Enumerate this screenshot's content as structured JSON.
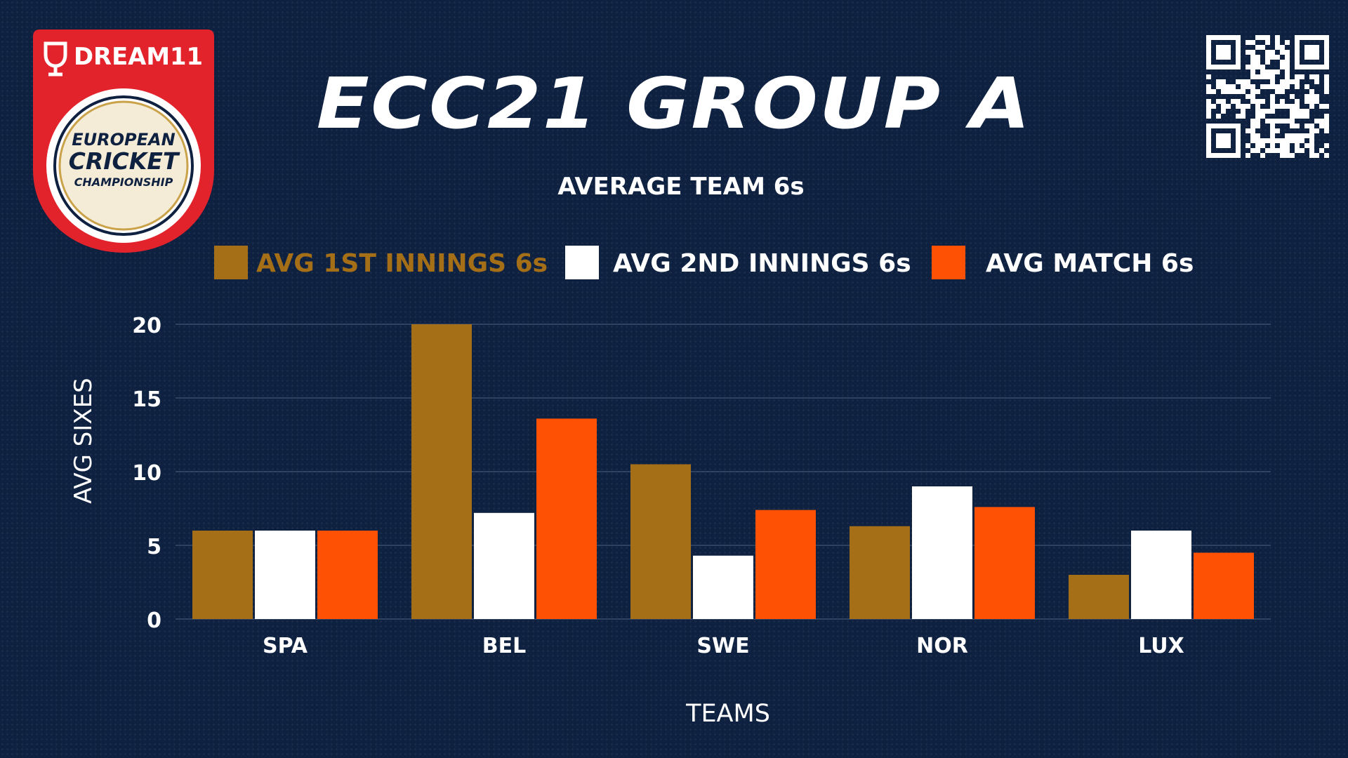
{
  "logo": {
    "brand": "DREAM11",
    "lines": [
      "EUROPEAN",
      "CRICKET",
      "CHAMPIONSHIP"
    ]
  },
  "title": "ECC21 GROUP A",
  "subtitle": "AVERAGE TEAM 6s",
  "colors": {
    "background": "#0f2140",
    "gold": "#a46f16",
    "white": "#ffffff",
    "orange": "#ff5104",
    "logo_red": "#e2232b",
    "grid": "#3a4e6c"
  },
  "chart_data": {
    "type": "bar",
    "title": "AVERAGE TEAM 6s",
    "xlabel": "TEAMS",
    "ylabel": "AVG SIXES",
    "categories": [
      "SPA",
      "BEL",
      "SWE",
      "NOR",
      "LUX"
    ],
    "series": [
      {
        "name": "AVG 1ST INNINGS 6s",
        "color": "#a46f16",
        "values": [
          6,
          20,
          10.5,
          6.3,
          3
        ]
      },
      {
        "name": "AVG 2ND INNINGS 6s",
        "color": "#ffffff",
        "values": [
          6,
          7.2,
          4.3,
          9,
          6
        ]
      },
      {
        "name": "AVG MATCH 6s",
        "color": "#ff5104",
        "values": [
          6,
          13.6,
          7.4,
          7.6,
          4.5
        ]
      }
    ],
    "ylim": [
      0,
      20
    ],
    "yticks": [
      0,
      5,
      10,
      15,
      20
    ],
    "grid": true,
    "legend_position": "top"
  }
}
